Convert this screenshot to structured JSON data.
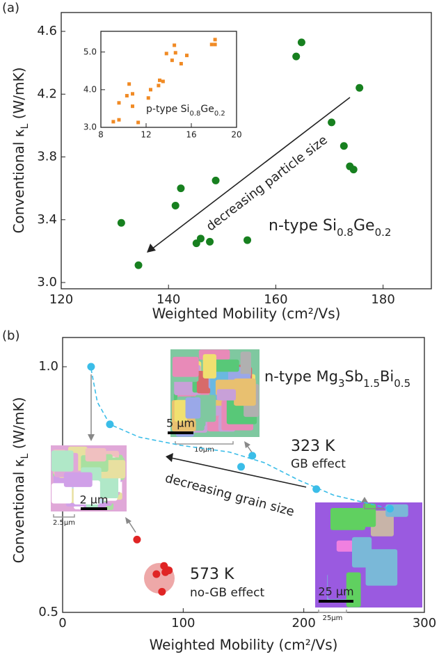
{
  "chart_data": [
    {
      "type": "scatter",
      "panel_label": "(a)",
      "xlabel": "Weighted Mobility (cm²/Vs)",
      "ylabel_parts": [
        "Conventional κ",
        "L",
        " (W/mK)"
      ],
      "xlim": [
        120,
        189
      ],
      "ylim": [
        2.96,
        4.72
      ],
      "xticks": [
        120,
        140,
        160,
        180
      ],
      "yticks": [
        {
          "value": 3.0,
          "label": "3.0"
        },
        3.4,
        3.8,
        4.2,
        {
          "value": 4.6,
          "label": "4.6"
        }
      ],
      "series": [
        {
          "label_parts": [
            "n-type Si",
            "0.8",
            "Ge",
            "0.2"
          ],
          "color": "#17801f",
          "x": [
            131.2,
            134.4,
            141.3,
            142.3,
            148.8,
            145.2,
            146.0,
            147.7,
            154.7,
            163.8,
            164.8,
            170.4,
            172.7,
            173.8,
            174.5,
            175.6
          ],
          "values": [
            3.38,
            3.11,
            3.49,
            3.6,
            3.65,
            3.25,
            3.28,
            3.26,
            3.27,
            4.44,
            4.53,
            4.02,
            3.87,
            3.74,
            3.72,
            4.24
          ]
        }
      ],
      "annotation": "decreasing particle size"
    },
    {
      "type": "scatter",
      "xlim": [
        8,
        20
      ],
      "ylim": [
        3.0,
        5.55
      ],
      "xticks": [
        8,
        12,
        16,
        20
      ],
      "yticks": [
        {
          "value": 3.0,
          "label": "3.0"
        },
        {
          "value": 4.0,
          "label": "4.0"
        },
        {
          "value": 5.0,
          "label": "5.0"
        }
      ],
      "series": [
        {
          "label_parts": [
            "p-type Si",
            "0.8",
            "Ge",
            "0.2"
          ],
          "color": "#f08a24",
          "x": [
            9.1,
            9.6,
            9.6,
            10.3,
            10.5,
            10.8,
            10.8,
            11.3,
            12.2,
            12.4,
            13.1,
            13.2,
            13.5,
            13.8,
            14.3,
            14.5,
            14.6,
            15.1,
            15.6,
            17.8,
            18.1,
            18.1
          ],
          "values": [
            3.15,
            3.65,
            3.2,
            3.84,
            4.15,
            3.89,
            3.56,
            3.13,
            3.78,
            4.0,
            4.11,
            4.25,
            4.22,
            4.96,
            4.78,
            5.18,
            4.98,
            4.69,
            4.91,
            5.2,
            5.33,
            5.2
          ]
        }
      ]
    },
    {
      "type": "scatter",
      "panel_label": "(b)",
      "xlabel": "Weighted Mobility (cm²/Vs)",
      "ylabel_parts": [
        "Conventional κ",
        "L",
        " (W/mK)"
      ],
      "xlim": [
        0,
        300
      ],
      "ylim": [
        0.5,
        1.086
      ],
      "log_y": true,
      "xticks": [
        0,
        100,
        200,
        300
      ],
      "yticks": [
        {
          "value": 0.5,
          "label": "0.5"
        },
        {
          "value": 1.0,
          "label": "1.0"
        }
      ],
      "title_parts": [
        "n-type Mg",
        "3",
        "Sb",
        "1.5",
        "Bi",
        "0.5"
      ],
      "series": [
        {
          "name": "323 K",
          "note": "GB effect",
          "color": "#3bbde8",
          "x": [
            23.6,
            39.2,
            148,
            157.3,
            210.4,
            271.5
          ],
          "values": [
            1.0,
            0.85,
            0.754,
            0.778,
            0.708,
            0.67
          ]
        },
        {
          "name": "573 K",
          "note": "no-GB effect",
          "color": "#e02424",
          "x": [
            61.7,
            77.8,
            84.1,
            85.2,
            88.1,
            82.4
          ],
          "values": [
            0.614,
            0.557,
            0.57,
            0.56,
            0.563,
            0.53
          ]
        }
      ],
      "curve": {
        "color": "#3bbde8",
        "x": [
          23.6,
          28.8,
          39.2,
          63.4,
          98,
          138.3,
          167.1,
          196,
          224.8,
          271.5
        ],
        "values": [
          0.994,
          0.905,
          0.85,
          0.82,
          0.801,
          0.786,
          0.763,
          0.726,
          0.696,
          0.67
        ]
      },
      "annotation": "decreasing grain size",
      "scale_bars": [
        "5 μm",
        "10μm",
        "2 μm",
        "2.5μm",
        "25 μm",
        "25μm"
      ]
    }
  ]
}
